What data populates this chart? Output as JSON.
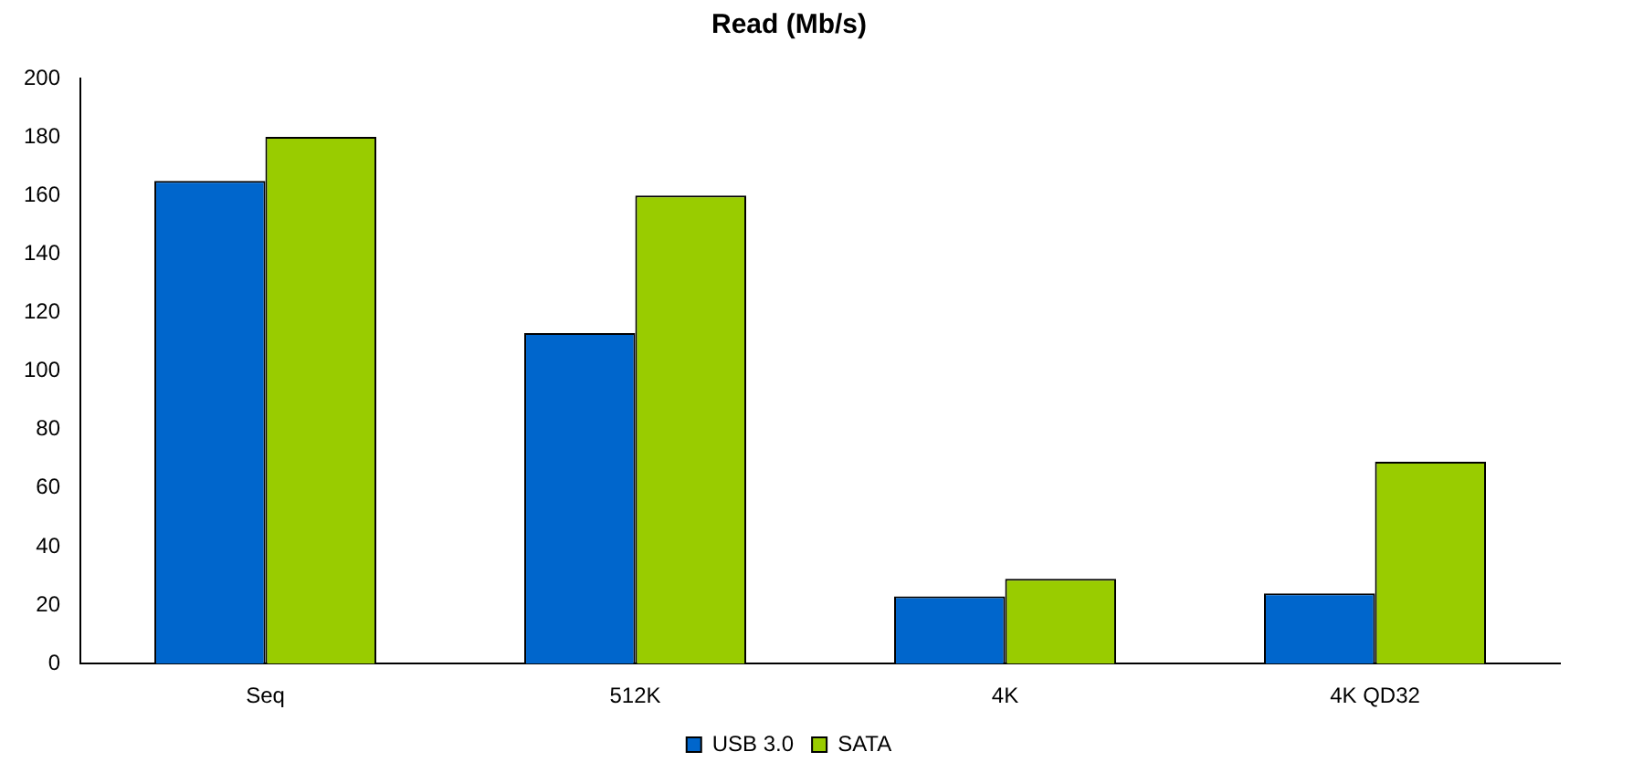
{
  "chart_data": {
    "type": "bar",
    "title": "Read (Mb/s)",
    "categories": [
      "Seq",
      "512K",
      "4K",
      "4K QD32"
    ],
    "series": [
      {
        "name": "USB 3.0",
        "color": "#0066cc",
        "values": [
          165,
          113,
          23,
          24
        ]
      },
      {
        "name": "SATA",
        "color": "#99cc00",
        "values": [
          180,
          160,
          29,
          69
        ]
      }
    ],
    "ylim": [
      0,
      200
    ],
    "yticks": [
      0,
      20,
      40,
      60,
      80,
      100,
      120,
      140,
      160,
      180,
      200
    ],
    "grid": false,
    "legend": "bottom"
  }
}
